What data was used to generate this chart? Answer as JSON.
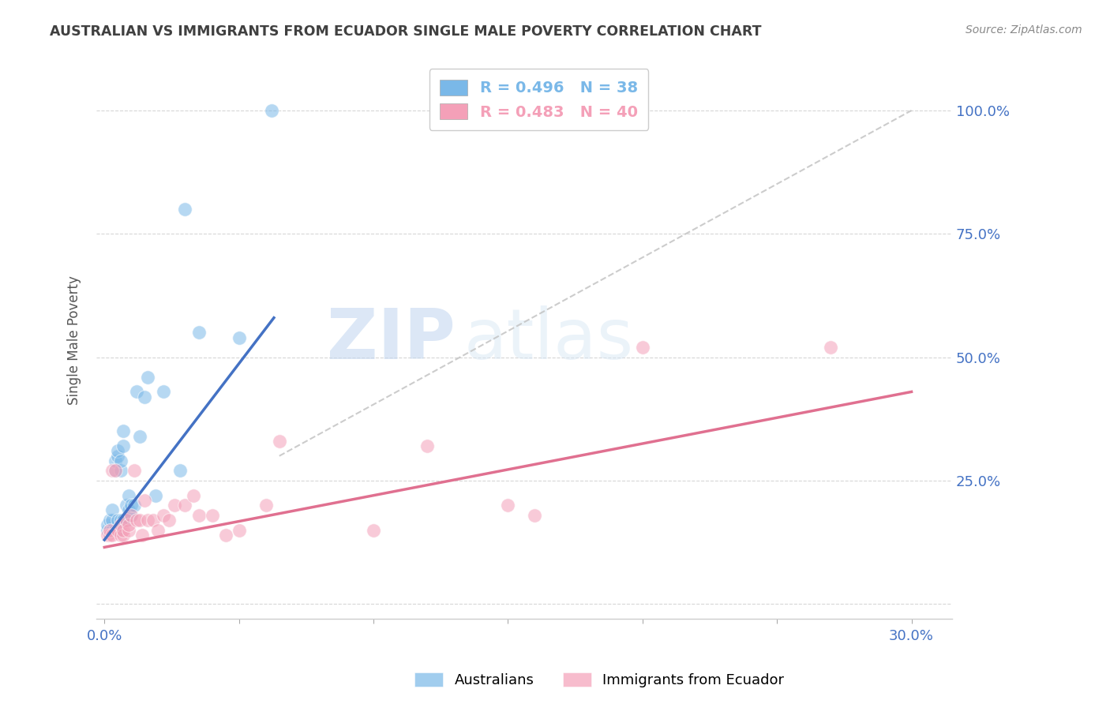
{
  "title": "AUSTRALIAN VS IMMIGRANTS FROM ECUADOR SINGLE MALE POVERTY CORRELATION CHART",
  "source": "Source: ZipAtlas.com",
  "ylabel": "Single Male Poverty",
  "yticks": [
    0.0,
    0.25,
    0.5,
    0.75,
    1.0
  ],
  "ytick_labels": [
    "",
    "25.0%",
    "50.0%",
    "75.0%",
    "100.0%"
  ],
  "xticks": [
    0.0,
    0.05,
    0.1,
    0.15,
    0.2,
    0.25,
    0.3
  ],
  "xmin": -0.003,
  "xmax": 0.315,
  "ymin": -0.03,
  "ymax": 1.1,
  "legend_r_blue": "R = 0.496",
  "legend_n_blue": "N = 38",
  "legend_r_pink": "R = 0.483",
  "legend_n_pink": "N = 40",
  "blue_color": "#7ab8e8",
  "pink_color": "#f4a0b8",
  "legend_label_blue": "Australians",
  "legend_label_pink": "Immigrants from Ecuador",
  "watermark_zip": "ZIP",
  "watermark_atlas": "atlas",
  "blue_scatter_x": [
    0.001,
    0.001,
    0.002,
    0.002,
    0.003,
    0.003,
    0.003,
    0.004,
    0.004,
    0.004,
    0.005,
    0.005,
    0.005,
    0.005,
    0.006,
    0.006,
    0.006,
    0.007,
    0.007,
    0.007,
    0.008,
    0.008,
    0.009,
    0.009,
    0.01,
    0.01,
    0.011,
    0.012,
    0.013,
    0.015,
    0.016,
    0.019,
    0.022,
    0.028,
    0.03,
    0.035,
    0.05,
    0.062
  ],
  "blue_scatter_y": [
    0.15,
    0.16,
    0.15,
    0.17,
    0.15,
    0.17,
    0.19,
    0.15,
    0.27,
    0.29,
    0.15,
    0.17,
    0.3,
    0.31,
    0.17,
    0.27,
    0.29,
    0.17,
    0.32,
    0.35,
    0.17,
    0.2,
    0.19,
    0.22,
    0.18,
    0.2,
    0.2,
    0.43,
    0.34,
    0.42,
    0.46,
    0.22,
    0.43,
    0.27,
    0.8,
    0.55,
    0.54,
    1.0
  ],
  "pink_scatter_x": [
    0.001,
    0.002,
    0.002,
    0.003,
    0.003,
    0.004,
    0.005,
    0.006,
    0.006,
    0.007,
    0.007,
    0.008,
    0.009,
    0.009,
    0.01,
    0.011,
    0.012,
    0.013,
    0.014,
    0.015,
    0.016,
    0.018,
    0.02,
    0.022,
    0.024,
    0.026,
    0.03,
    0.033,
    0.035,
    0.04,
    0.045,
    0.05,
    0.06,
    0.065,
    0.1,
    0.12,
    0.15,
    0.16,
    0.2,
    0.27
  ],
  "pink_scatter_y": [
    0.14,
    0.14,
    0.15,
    0.14,
    0.27,
    0.27,
    0.15,
    0.14,
    0.16,
    0.14,
    0.15,
    0.17,
    0.15,
    0.16,
    0.18,
    0.27,
    0.17,
    0.17,
    0.14,
    0.21,
    0.17,
    0.17,
    0.15,
    0.18,
    0.17,
    0.2,
    0.2,
    0.22,
    0.18,
    0.18,
    0.14,
    0.15,
    0.2,
    0.33,
    0.15,
    0.32,
    0.2,
    0.18,
    0.52,
    0.52
  ],
  "blue_line_x": [
    0.0,
    0.063
  ],
  "blue_line_y": [
    0.13,
    0.58
  ],
  "pink_line_x": [
    0.0,
    0.3
  ],
  "pink_line_y": [
    0.115,
    0.43
  ],
  "diag_line_x": [
    0.065,
    0.3
  ],
  "diag_line_y": [
    0.3,
    1.0
  ],
  "background_color": "#ffffff",
  "title_color": "#404040",
  "axis_label_color": "#4472c4",
  "grid_color": "#cccccc",
  "source_color": "#888888",
  "blue_line_color": "#4472c4",
  "pink_line_color": "#e07090"
}
